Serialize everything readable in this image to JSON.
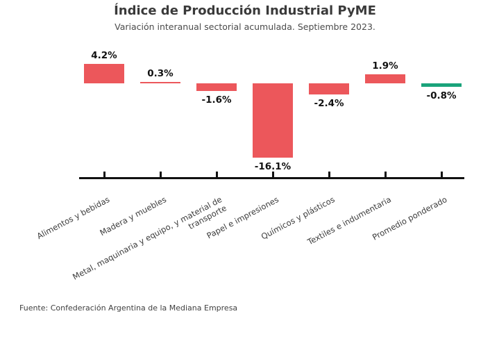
{
  "footer": {
    "source": "Fuente: Confederación Argentina de la Mediana Empresa"
  },
  "colors": {
    "sector_bar": "#ec575b",
    "highlight_bar": "#1aa37b",
    "axis": "#111111",
    "title_text": "#3a3a3a",
    "subtitle_text": "#4a4a4a",
    "value_text": "#111111",
    "tick_label_text": "#3c3c3c"
  },
  "chart_data": {
    "type": "bar",
    "title": "Índice de Producción Industrial PyME",
    "subtitle": "Variación interanual sectorial acumulada. Septiembre 2023.",
    "categories": [
      "Alimentos y bebidas",
      "Madera y muebles",
      "Metal, maquinaria y equipo, y material de\ntransporte",
      "Papel e impresiones",
      "Químicos y plásticos",
      "Textiles e indumentaria",
      "Promedio ponderado"
    ],
    "values": [
      4.2,
      0.3,
      -1.6,
      -16.1,
      -2.4,
      1.9,
      -0.8
    ],
    "value_labels": [
      "4.2%",
      "0.3%",
      "-1.6%",
      "-16.1%",
      "-2.4%",
      "1.9%",
      "-0.8%"
    ],
    "bar_colors": [
      "#ec575b",
      "#ec575b",
      "#ec575b",
      "#ec575b",
      "#ec575b",
      "#ec575b",
      "#1aa37b"
    ],
    "xlabel": "",
    "ylabel": "",
    "ylim": [
      -20.3,
      9.8
    ],
    "grid": false,
    "legend": "none",
    "baseline": 0
  }
}
